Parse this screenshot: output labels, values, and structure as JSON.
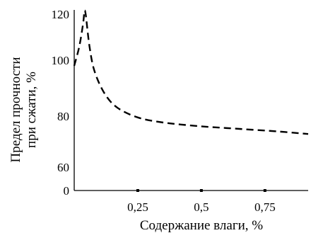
{
  "chart_data": {
    "type": "line",
    "xlabel": "Содержание влаги, %",
    "ylabel_lines": [
      "Предел прочности",
      "при сжати, %"
    ],
    "x_ticks": [
      {
        "value": 0.25,
        "label": "0,25"
      },
      {
        "value": 0.5,
        "label": "0,5"
      },
      {
        "value": 0.75,
        "label": "0,75"
      }
    ],
    "y_ticks": [
      {
        "value": 0,
        "label": "0"
      },
      {
        "value": 60,
        "label": "60"
      },
      {
        "value": 80,
        "label": "80"
      },
      {
        "value": 100,
        "label": "100"
      },
      {
        "value": 120,
        "label": "120"
      }
    ],
    "xlim": [
      0,
      0.92
    ],
    "grid": false,
    "line_style": "dashed",
    "line_color": "#000000",
    "series": [
      {
        "x": [
          0.0,
          0.02,
          0.035,
          0.04,
          0.045,
          0.06,
          0.08,
          0.12,
          0.17,
          0.25,
          0.35,
          0.5,
          0.65,
          0.8,
          0.92
        ],
        "y": [
          98,
          106,
          116,
          121,
          120,
          106,
          96,
          88,
          83,
          79.5,
          77.5,
          76,
          75,
          74,
          73
        ]
      }
    ]
  }
}
